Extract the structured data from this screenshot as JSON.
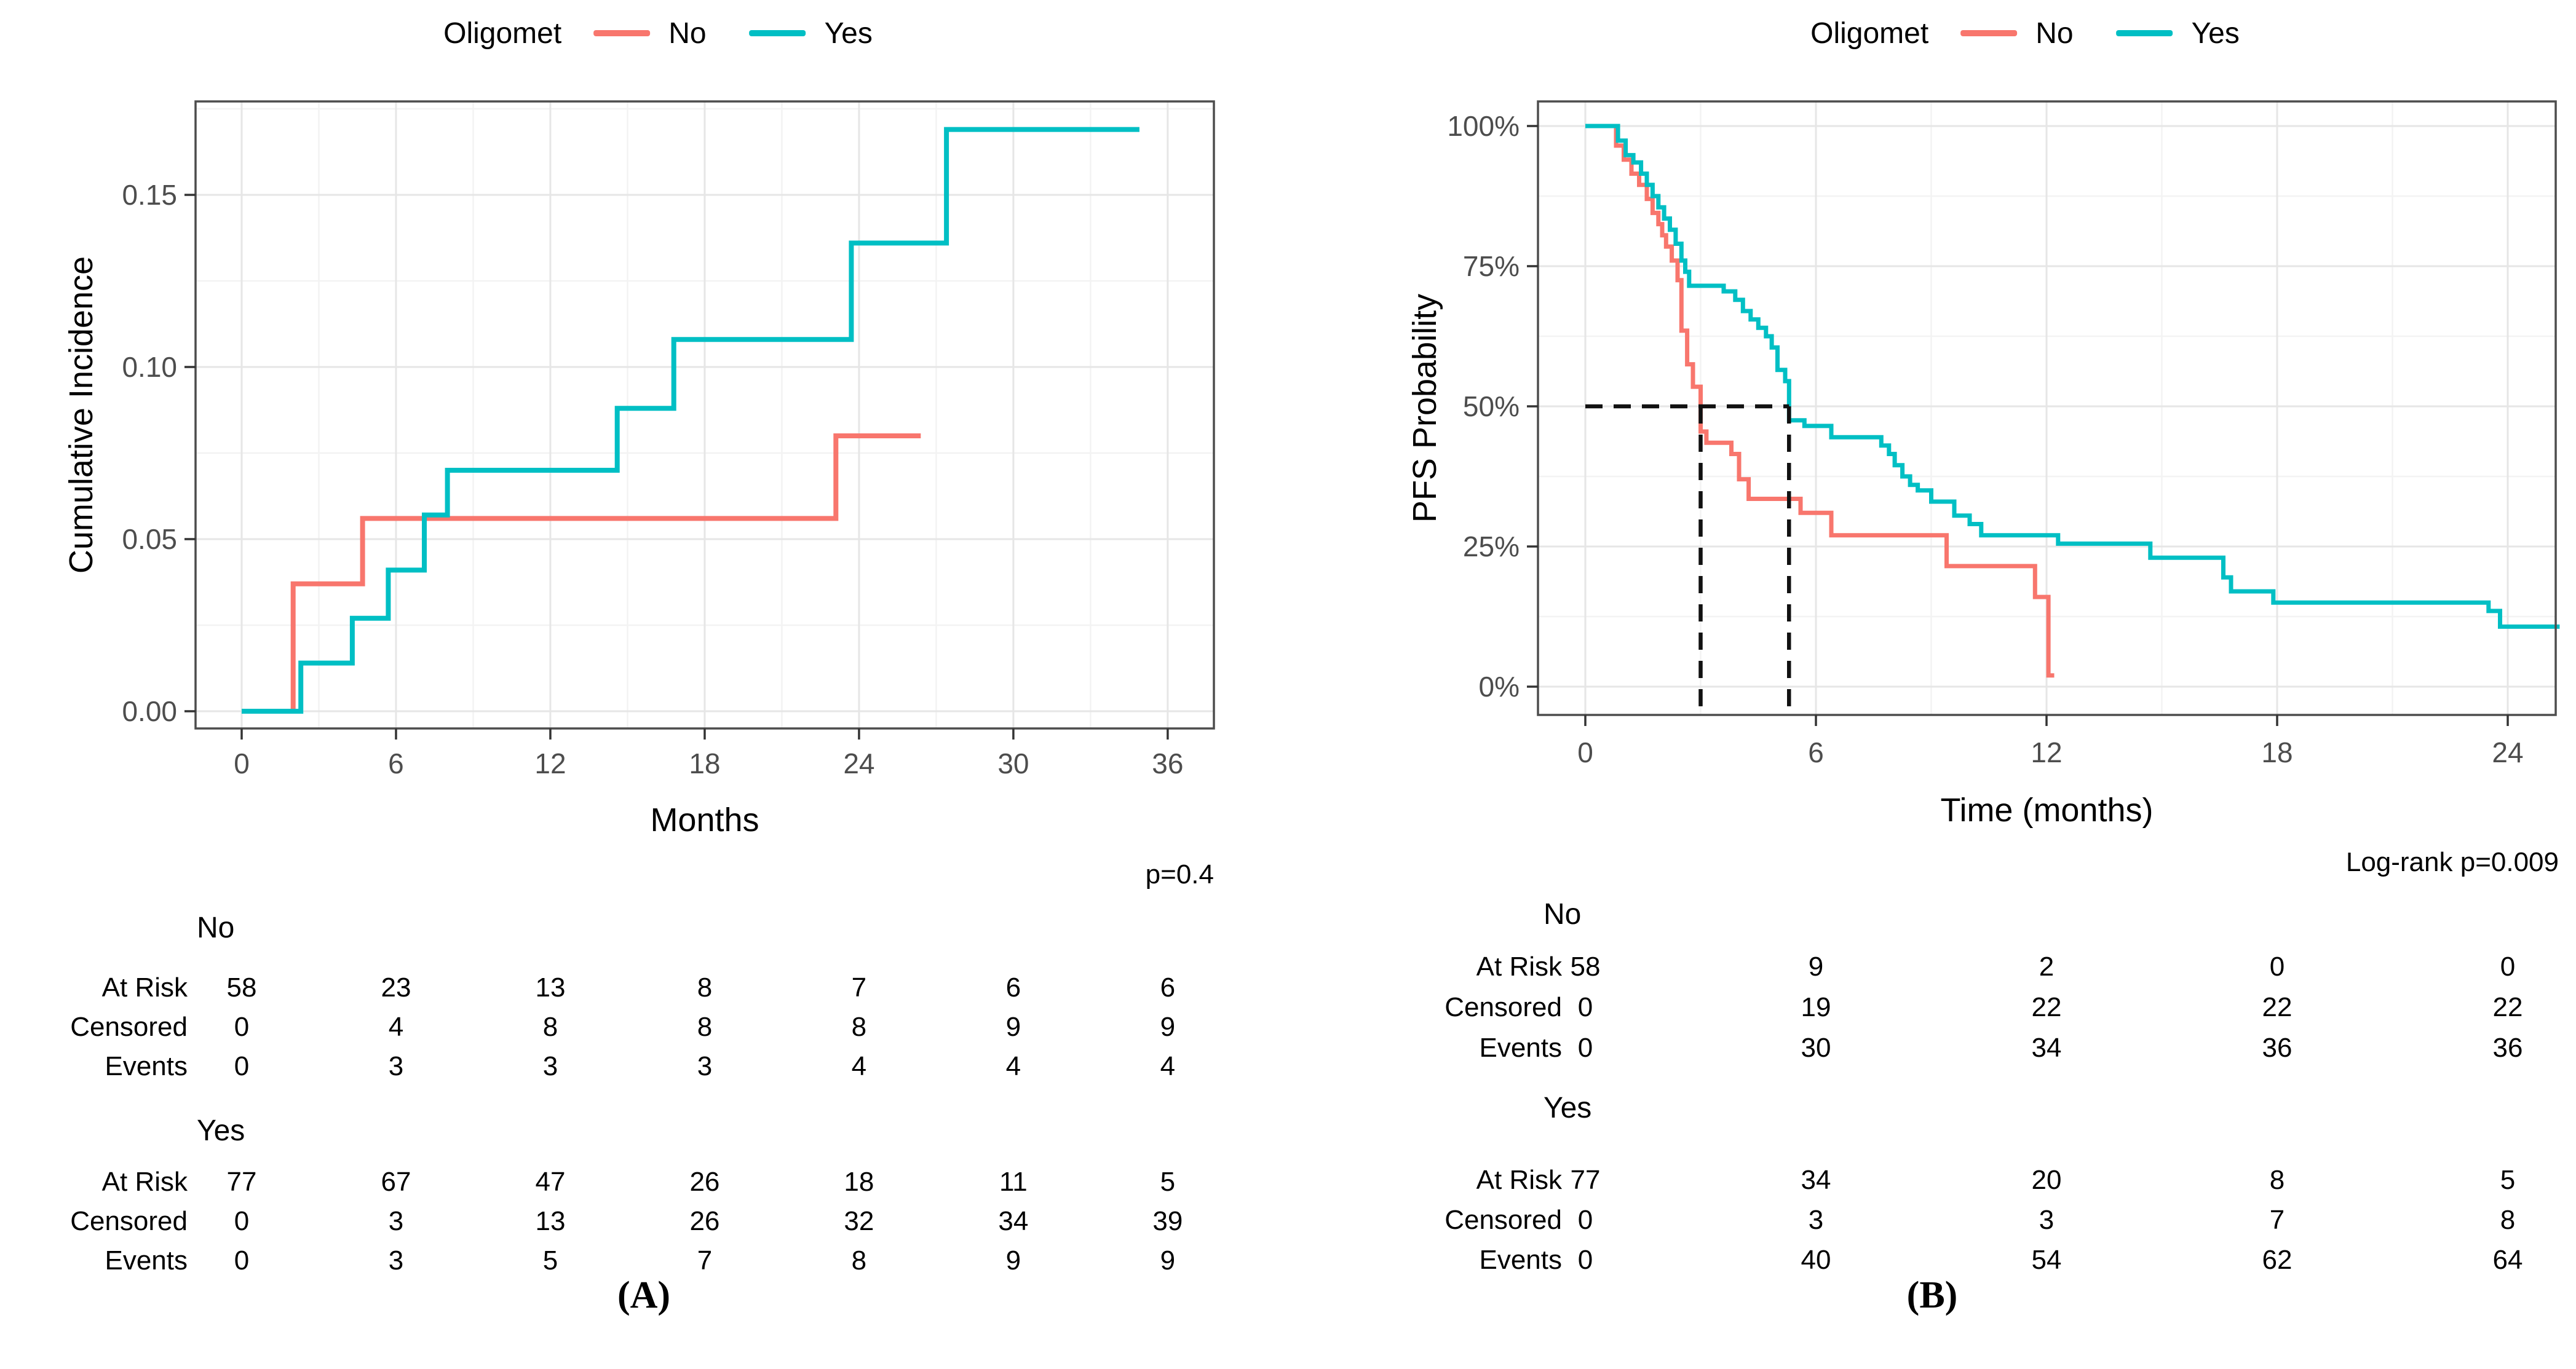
{
  "colors": {
    "no": "#F8766D",
    "yes": "#00BFC4",
    "grid_major": "#E6E6E6",
    "grid_minor": "#F3F3F3",
    "panel_border": "#4D4D4D",
    "tick_mark": "#333333",
    "tick_text": "#4D4D4D",
    "axis_title_text": "#000000",
    "median_dash": "#111111"
  },
  "chart_data": [
    {
      "id": "A",
      "type": "line",
      "subtype": "step-cumulative-incidence",
      "legend": {
        "title": "Oligomet",
        "items": [
          {
            "label": "No",
            "color_key": "no"
          },
          {
            "label": "Yes",
            "color_key": "yes"
          }
        ]
      },
      "x_title": "Months",
      "y_title": "Cumulative Incidence",
      "p_text": "p=0.4",
      "caption": "(A)",
      "xlim": [
        -1.8,
        37.8
      ],
      "ylim": [
        -0.005,
        0.177
      ],
      "x_ticks": [
        0,
        6,
        12,
        18,
        24,
        30,
        36
      ],
      "x_minor": [
        3,
        9,
        15,
        21,
        27,
        33
      ],
      "y_ticks": [
        0,
        0.05,
        0.1,
        0.15
      ],
      "y_tick_labels": [
        "0.00",
        "0.05",
        "0.10",
        "0.15"
      ],
      "y_minor": [
        0.025,
        0.075,
        0.125,
        0.175
      ],
      "grid": true,
      "legend_position": "top",
      "series": [
        {
          "name": "No",
          "color_key": "no",
          "points": [
            [
              0,
              0
            ],
            [
              2.0,
              0.037
            ],
            [
              4.7,
              0.056
            ],
            [
              23.1,
              0.08
            ]
          ],
          "end_x": 26.4
        },
        {
          "name": "Yes",
          "color_key": "yes",
          "points": [
            [
              0,
              0
            ],
            [
              2.3,
              0.014
            ],
            [
              4.3,
              0.027
            ],
            [
              5.7,
              0.041
            ],
            [
              7.1,
              0.057
            ],
            [
              8.0,
              0.07
            ],
            [
              14.6,
              0.088
            ],
            [
              16.8,
              0.108
            ],
            [
              23.7,
              0.136
            ],
            [
              27.4,
              0.169
            ]
          ],
          "end_x": 34.9
        }
      ],
      "risk_table": {
        "row_labels": [
          "At Risk",
          "Censored",
          "Events"
        ],
        "columns_months": [
          0,
          6,
          12,
          18,
          24,
          30,
          36
        ],
        "groups": [
          {
            "name": "No",
            "rows": [
              [
                58,
                23,
                13,
                8,
                7,
                6,
                6
              ],
              [
                0,
                4,
                8,
                8,
                8,
                9,
                9
              ],
              [
                0,
                3,
                3,
                3,
                4,
                4,
                4
              ]
            ]
          },
          {
            "name": "Yes",
            "rows": [
              [
                77,
                67,
                47,
                26,
                18,
                11,
                5
              ],
              [
                0,
                3,
                13,
                26,
                32,
                34,
                39
              ],
              [
                0,
                3,
                5,
                7,
                8,
                9,
                9
              ]
            ]
          }
        ]
      }
    },
    {
      "id": "B",
      "type": "line",
      "subtype": "step-kaplan-meier",
      "legend": {
        "title": "Oligomet",
        "items": [
          {
            "label": "No",
            "color_key": "no"
          },
          {
            "label": "Yes",
            "color_key": "yes"
          }
        ]
      },
      "x_title": "Time (months)",
      "y_title": "PFS Probability",
      "p_text": "Log-rank p=0.009",
      "caption": "(B)",
      "xlim": [
        -1.25,
        25.4
      ],
      "ylim": [
        -5,
        104.5
      ],
      "x_ticks": [
        0,
        6,
        12,
        18,
        24
      ],
      "x_minor": [
        3,
        9,
        15,
        21
      ],
      "y_ticks": [
        0,
        25,
        50,
        75,
        100
      ],
      "y_tick_labels": [
        "0%",
        "25%",
        "50%",
        "75%",
        "100%"
      ],
      "y_minor": [
        12.5,
        37.5,
        62.5,
        87.5
      ],
      "grid": true,
      "legend_position": "top",
      "median_annotation": {
        "level": 50,
        "median_no": 3.0,
        "median_yes": 5.3
      },
      "series": [
        {
          "name": "No",
          "color_key": "no",
          "points": [
            [
              0,
              100
            ],
            [
              0.8,
              96.5
            ],
            [
              1.0,
              94
            ],
            [
              1.2,
              91.5
            ],
            [
              1.4,
              89.5
            ],
            [
              1.6,
              87
            ],
            [
              1.75,
              84.5
            ],
            [
              1.9,
              82.5
            ],
            [
              2.0,
              80.5
            ],
            [
              2.1,
              78.5
            ],
            [
              2.25,
              76
            ],
            [
              2.4,
              72.5
            ],
            [
              2.5,
              63.5
            ],
            [
              2.65,
              57.5
            ],
            [
              2.8,
              53.5
            ],
            [
              3.0,
              45.5
            ],
            [
              3.15,
              43.5
            ],
            [
              3.8,
              41.5
            ],
            [
              4.0,
              37
            ],
            [
              4.25,
              33.5
            ],
            [
              5.6,
              31
            ],
            [
              6.4,
              27
            ],
            [
              9.4,
              21.5
            ],
            [
              11.7,
              16
            ],
            [
              12.05,
              2
            ]
          ],
          "end_x": 12.2
        },
        {
          "name": "Yes",
          "color_key": "yes",
          "points": [
            [
              0,
              100
            ],
            [
              0.85,
              97.4
            ],
            [
              1.05,
              94.8
            ],
            [
              1.25,
              93.5
            ],
            [
              1.45,
              91.5
            ],
            [
              1.6,
              89.5
            ],
            [
              1.75,
              87.5
            ],
            [
              1.9,
              85.5
            ],
            [
              2.05,
              83.5
            ],
            [
              2.2,
              81.5
            ],
            [
              2.35,
              79
            ],
            [
              2.5,
              76
            ],
            [
              2.6,
              74
            ],
            [
              2.7,
              71.5
            ],
            [
              3.6,
              70.5
            ],
            [
              3.9,
              69
            ],
            [
              4.1,
              67
            ],
            [
              4.3,
              65.5
            ],
            [
              4.5,
              64
            ],
            [
              4.7,
              62.5
            ],
            [
              4.85,
              60.5
            ],
            [
              5.0,
              56.5
            ],
            [
              5.2,
              54.5
            ],
            [
              5.3,
              47.5
            ],
            [
              5.7,
              46.5
            ],
            [
              6.4,
              44.5
            ],
            [
              7.7,
              43
            ],
            [
              7.9,
              41.5
            ],
            [
              8.05,
              39.5
            ],
            [
              8.25,
              37.5
            ],
            [
              8.45,
              36
            ],
            [
              8.65,
              35
            ],
            [
              9.0,
              33
            ],
            [
              9.6,
              30.5
            ],
            [
              10.0,
              29
            ],
            [
              10.3,
              27
            ],
            [
              12.3,
              25.5
            ],
            [
              14.7,
              23
            ],
            [
              16.6,
              19.5
            ],
            [
              16.8,
              17
            ],
            [
              17.9,
              15
            ],
            [
              23.5,
              13.5
            ],
            [
              23.8,
              10.7
            ]
          ],
          "end_x": 25.35
        }
      ],
      "risk_table": {
        "row_labels": [
          "At Risk",
          "Censored",
          "Events"
        ],
        "columns_months": [
          0,
          6,
          12,
          18,
          24
        ],
        "groups": [
          {
            "name": "No",
            "rows": [
              [
                58,
                9,
                2,
                0,
                0
              ],
              [
                0,
                19,
                22,
                22,
                22
              ],
              [
                0,
                30,
                34,
                36,
                36
              ]
            ]
          },
          {
            "name": "Yes",
            "rows": [
              [
                77,
                34,
                20,
                8,
                5
              ],
              [
                0,
                3,
                3,
                7,
                8
              ],
              [
                0,
                40,
                54,
                62,
                64
              ]
            ]
          }
        ]
      }
    }
  ]
}
